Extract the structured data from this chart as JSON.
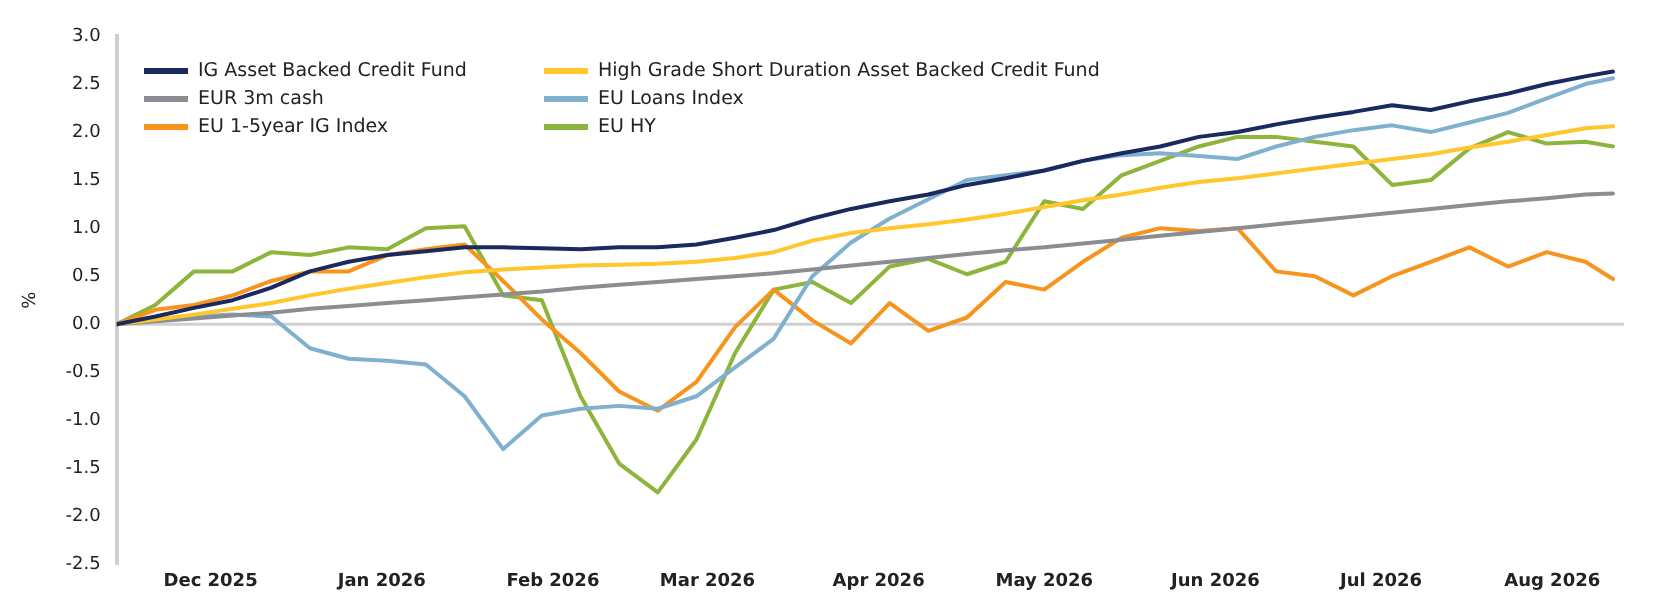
{
  "chart_data": {
    "type": "line",
    "ylabel": "%",
    "x": [
      "2025-11-28",
      "2025-12-05",
      "2025-12-12",
      "2025-12-19",
      "2025-12-26",
      "2026-01-02",
      "2026-01-09",
      "2026-01-16",
      "2026-01-23",
      "2026-01-30",
      "2026-02-06",
      "2026-02-13",
      "2026-02-20",
      "2026-02-27",
      "2026-03-06",
      "2026-03-13",
      "2026-03-20",
      "2026-03-27",
      "2026-04-03",
      "2026-04-10",
      "2026-04-17",
      "2026-04-24",
      "2026-05-01",
      "2026-05-08",
      "2026-05-15",
      "2026-05-22",
      "2026-05-29",
      "2026-06-05",
      "2026-06-12",
      "2026-06-19",
      "2026-06-26",
      "2026-07-03",
      "2026-07-10",
      "2026-07-17",
      "2026-07-24",
      "2026-07-31",
      "2026-08-07",
      "2026-08-14",
      "2026-08-21",
      "2026-08-26"
    ],
    "series": [
      {
        "name": "IG Asset Backed Credit Fund",
        "color": "#1a2a5e",
        "values": [
          0,
          0.08,
          0.17,
          0.25,
          0.38,
          0.55,
          0.65,
          0.72,
          0.76,
          0.8,
          0.8,
          0.79,
          0.78,
          0.8,
          0.8,
          0.83,
          0.9,
          0.98,
          1.1,
          1.2,
          1.28,
          1.35,
          1.45,
          1.52,
          1.6,
          1.7,
          1.78,
          1.85,
          1.95,
          2.0,
          2.08,
          2.15,
          2.21,
          2.28,
          2.23,
          2.32,
          2.4,
          2.5,
          2.58,
          2.63
        ]
      },
      {
        "name": "High Grade Short Duration Asset Backed Credit Fund",
        "color": "#ffc72c",
        "values": [
          0,
          0.05,
          0.1,
          0.16,
          0.22,
          0.3,
          0.37,
          0.43,
          0.49,
          0.54,
          0.57,
          0.59,
          0.61,
          0.62,
          0.63,
          0.65,
          0.69,
          0.75,
          0.87,
          0.95,
          1.0,
          1.04,
          1.09,
          1.15,
          1.22,
          1.29,
          1.35,
          1.42,
          1.48,
          1.52,
          1.57,
          1.62,
          1.67,
          1.72,
          1.77,
          1.84,
          1.9,
          1.97,
          2.04,
          2.06
        ]
      },
      {
        "name": "EUR 3m cash",
        "color": "#8a8d91",
        "values": [
          0,
          0.03,
          0.06,
          0.09,
          0.12,
          0.16,
          0.19,
          0.22,
          0.25,
          0.28,
          0.31,
          0.34,
          0.38,
          0.41,
          0.44,
          0.47,
          0.5,
          0.53,
          0.57,
          0.61,
          0.65,
          0.69,
          0.73,
          0.77,
          0.8,
          0.84,
          0.88,
          0.92,
          0.96,
          1.0,
          1.04,
          1.08,
          1.12,
          1.16,
          1.2,
          1.24,
          1.28,
          1.31,
          1.35,
          1.36
        ]
      },
      {
        "name": "EU Loans Index",
        "color": "#7fb1cf",
        "values": [
          0,
          0.05,
          0.08,
          0.1,
          0.08,
          -0.25,
          -0.36,
          -0.38,
          -0.42,
          -0.75,
          -1.3,
          -0.95,
          -0.88,
          -0.85,
          -0.88,
          -0.75,
          -0.45,
          -0.15,
          0.5,
          0.85,
          1.1,
          1.3,
          1.5,
          1.55,
          1.6,
          1.7,
          1.76,
          1.78,
          1.75,
          1.72,
          1.85,
          1.95,
          2.02,
          2.07,
          2.0,
          2.1,
          2.2,
          2.35,
          2.5,
          2.56
        ]
      },
      {
        "name": "EU 1-5year IG Index",
        "color": "#f7941d",
        "values": [
          0,
          0.15,
          0.2,
          0.3,
          0.45,
          0.55,
          0.55,
          0.72,
          0.78,
          0.83,
          0.45,
          0.05,
          -0.3,
          -0.7,
          -0.9,
          -0.6,
          -0.03,
          0.36,
          0.04,
          -0.2,
          0.22,
          -0.07,
          0.07,
          0.44,
          0.36,
          0.65,
          0.9,
          1.0,
          0.97,
          1.0,
          0.55,
          0.5,
          0.3,
          0.5,
          0.65,
          0.8,
          0.6,
          0.75,
          0.65,
          0.47
        ]
      },
      {
        "name": "EU HY",
        "color": "#8db53c",
        "values": [
          0,
          0.2,
          0.55,
          0.55,
          0.75,
          0.72,
          0.8,
          0.78,
          1.0,
          1.02,
          0.3,
          0.25,
          -0.75,
          -1.45,
          -1.75,
          -1.2,
          -0.3,
          0.36,
          0.44,
          0.22,
          0.6,
          0.68,
          0.52,
          0.65,
          1.28,
          1.2,
          1.55,
          1.7,
          1.85,
          1.95,
          1.95,
          1.9,
          1.85,
          1.45,
          1.5,
          1.83,
          2.0,
          1.88,
          1.9,
          1.85
        ]
      }
    ],
    "xlim": [
      "2025-11-28",
      "2026-08-28"
    ],
    "xticks": [
      {
        "value": "2025-12-15",
        "label": "Dec 2025"
      },
      {
        "value": "2026-01-15",
        "label": "Jan 2026"
      },
      {
        "value": "2026-02-15",
        "label": "Feb 2026"
      },
      {
        "value": "2026-03-15",
        "label": "Mar 2026"
      },
      {
        "value": "2026-04-15",
        "label": "Apr 2026"
      },
      {
        "value": "2026-05-15",
        "label": "May 2026"
      },
      {
        "value": "2026-06-15",
        "label": "Jun 2026"
      },
      {
        "value": "2026-07-15",
        "label": "Jul 2026"
      },
      {
        "value": "2026-08-15",
        "label": "Aug 2026"
      }
    ],
    "ylim": [
      -2.5,
      3
    ],
    "yticks": [
      {
        "value": -2.5,
        "label": "-2.5"
      },
      {
        "value": -2,
        "label": "-2.0"
      },
      {
        "value": -1.5,
        "label": "-1.5"
      },
      {
        "value": -1,
        "label": "-1.0"
      },
      {
        "value": -0.5,
        "label": "-0.5"
      },
      {
        "value": 0,
        "label": "0.0"
      },
      {
        "value": 0.5,
        "label": "0.5"
      },
      {
        "value": 1,
        "label": "1.0"
      },
      {
        "value": 1.5,
        "label": "1.5"
      },
      {
        "value": 2,
        "label": "2.0"
      },
      {
        "value": 2.5,
        "label": "2.5"
      },
      {
        "value": 3,
        "label": "3.0"
      }
    ],
    "ref_lines": [
      {
        "axis": "y",
        "value": 0,
        "color": "#d0d0d0"
      }
    ],
    "grid": false,
    "legend": "top left",
    "marker": "none",
    "line_style": "solid"
  }
}
